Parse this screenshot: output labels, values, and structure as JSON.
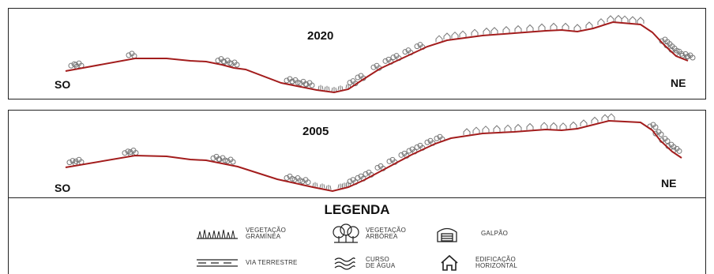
{
  "panels": [
    {
      "year": "2020",
      "left_label": "SO",
      "right_label": "NE"
    },
    {
      "year": "2005",
      "left_label": "SO",
      "right_label": "NE"
    }
  ],
  "legend": {
    "title": "LEGENDA",
    "items": [
      {
        "line1": "VEGETAÇÃO",
        "line2": "GRAMÍNEA",
        "icon": "grass-icon"
      },
      {
        "line1": "VEGETAÇÃO",
        "line2": "ARBÓREA",
        "icon": "tree-icon"
      },
      {
        "line1": "GALPÃO",
        "line2": "",
        "icon": "shed-icon"
      },
      {
        "line1": "VIA TERRESTRE",
        "line2": "",
        "icon": "road-icon"
      },
      {
        "line1": "CURSO",
        "line2": "DE ÁGUA",
        "icon": "water-icon"
      },
      {
        "line1": "EDIFICAÇÃO",
        "line2": "HORIZONTAL",
        "icon": "house-icon"
      }
    ]
  },
  "colors": {
    "profile_line": "#a31d1d",
    "symbols": "#777777",
    "frame": "#222222"
  }
}
